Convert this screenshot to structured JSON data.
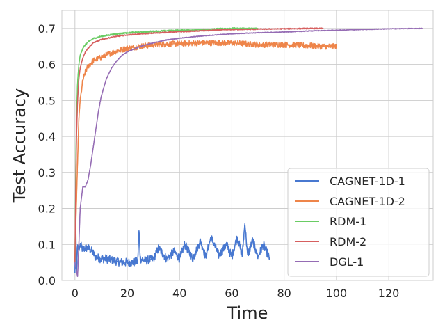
{
  "chart_data": {
    "type": "line",
    "title": "",
    "xlabel": "Time",
    "ylabel": "Test Accuracy",
    "xlim": [
      -5,
      137
    ],
    "ylim": [
      0.0,
      0.75
    ],
    "xticks": [
      0,
      20,
      40,
      60,
      80,
      100,
      120
    ],
    "yticks": [
      0.0,
      0.1,
      0.2,
      0.3,
      0.4,
      0.5,
      0.6,
      0.7
    ],
    "xtick_labels": [
      "0",
      "20",
      "40",
      "60",
      "80",
      "100",
      "120"
    ],
    "ytick_labels": [
      "0.0",
      "0.1",
      "0.2",
      "0.3",
      "0.4",
      "0.5",
      "0.6",
      "0.7"
    ],
    "grid": true,
    "legend_position": "lower-right",
    "series": [
      {
        "name": "CAGNET-1D-1",
        "color": "#4878d0",
        "x": [
          0,
          0.3,
          0.6,
          1,
          1.5,
          2,
          3,
          4,
          5,
          6,
          7,
          8,
          10,
          12,
          15,
          18,
          20,
          22,
          24,
          24.5,
          25,
          27,
          30,
          32,
          35,
          38,
          40,
          42,
          45,
          48,
          50,
          52,
          55,
          58,
          60,
          62,
          64,
          65,
          66,
          68,
          70,
          72,
          74.5
        ],
        "y": [
          0.02,
          0.17,
          0.02,
          0.1,
          0.08,
          0.1,
          0.085,
          0.09,
          0.09,
          0.085,
          0.075,
          0.065,
          0.06,
          0.06,
          0.055,
          0.05,
          0.05,
          0.05,
          0.052,
          0.14,
          0.06,
          0.055,
          0.06,
          0.09,
          0.06,
          0.08,
          0.06,
          0.1,
          0.06,
          0.11,
          0.065,
          0.12,
          0.07,
          0.1,
          0.065,
          0.12,
          0.07,
          0.16,
          0.07,
          0.11,
          0.065,
          0.1,
          0.06
        ],
        "noise": 0.012
      },
      {
        "name": "CAGNET-1D-2",
        "color": "#ee854a",
        "x": [
          0,
          0.5,
          1,
          1.5,
          2,
          3,
          4,
          5,
          7,
          10,
          15,
          20,
          25,
          30,
          40,
          50,
          60,
          70,
          80,
          90,
          95,
          100
        ],
        "y": [
          0.06,
          0.2,
          0.33,
          0.45,
          0.5,
          0.555,
          0.58,
          0.595,
          0.61,
          0.62,
          0.635,
          0.645,
          0.65,
          0.655,
          0.658,
          0.66,
          0.66,
          0.655,
          0.655,
          0.652,
          0.65,
          0.65
        ],
        "noise": 0.008
      },
      {
        "name": "RDM-1",
        "color": "#6acc64",
        "x": [
          0,
          0.3,
          0.6,
          1,
          1.5,
          2,
          3,
          4,
          5,
          7,
          10,
          15,
          20,
          30,
          40,
          50,
          55,
          60,
          65,
          70
        ],
        "y": [
          0.05,
          0.3,
          0.45,
          0.55,
          0.6,
          0.625,
          0.645,
          0.655,
          0.662,
          0.672,
          0.678,
          0.684,
          0.688,
          0.692,
          0.695,
          0.697,
          0.699,
          0.7,
          0.7,
          0.7
        ],
        "noise": 0.002
      },
      {
        "name": "RDM-2",
        "color": "#d65f5f",
        "x": [
          0,
          0.3,
          0.6,
          1,
          1.5,
          2,
          3,
          4,
          5,
          7,
          10,
          15,
          20,
          30,
          40,
          50,
          60,
          70,
          80,
          90,
          95
        ],
        "y": [
          0.05,
          0.25,
          0.4,
          0.5,
          0.56,
          0.59,
          0.618,
          0.635,
          0.645,
          0.66,
          0.669,
          0.677,
          0.682,
          0.687,
          0.691,
          0.694,
          0.697,
          0.698,
          0.699,
          0.7,
          0.7
        ],
        "noise": 0.0015
      },
      {
        "name": "DGL-1",
        "color": "#956cb4",
        "x": [
          0,
          1,
          1.5,
          2,
          3,
          4,
          5,
          6,
          7,
          8,
          9,
          10,
          12,
          14,
          16,
          18,
          20,
          25,
          30,
          35,
          40,
          50,
          60,
          70,
          80,
          90,
          100,
          110,
          120,
          130,
          133
        ],
        "y": [
          0.05,
          0.01,
          0.1,
          0.2,
          0.26,
          0.26,
          0.28,
          0.32,
          0.37,
          0.42,
          0.47,
          0.51,
          0.56,
          0.59,
          0.61,
          0.625,
          0.635,
          0.65,
          0.66,
          0.668,
          0.673,
          0.68,
          0.685,
          0.688,
          0.69,
          0.693,
          0.695,
          0.697,
          0.699,
          0.7,
          0.7
        ],
        "noise": 0.001
      }
    ]
  }
}
